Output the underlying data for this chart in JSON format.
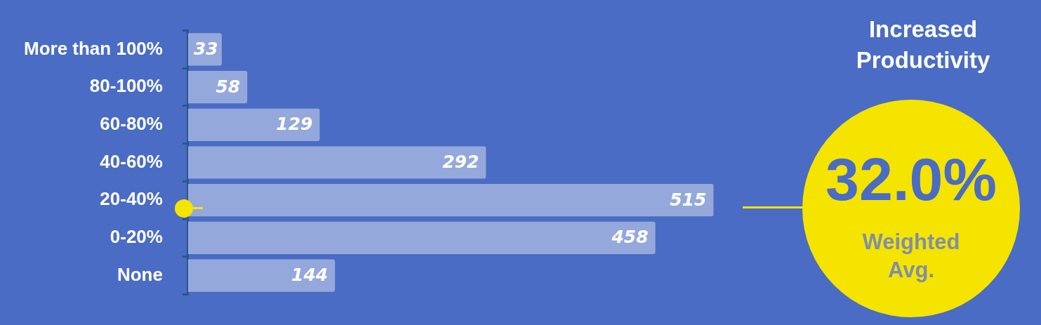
{
  "chart_data": {
    "type": "bar",
    "orientation": "horizontal",
    "title": "Increased Productivity",
    "annotations": [
      "32.0%",
      "Weighted Avg."
    ],
    "categories": [
      "More than 100%",
      "80-100%",
      "60-80%",
      "40-60%",
      "20-40%",
      "0-20%",
      "None"
    ],
    "values": [
      33,
      58,
      129,
      292,
      515,
      458,
      144
    ],
    "color": "#94a8dc",
    "data_labels": true
  }
}
